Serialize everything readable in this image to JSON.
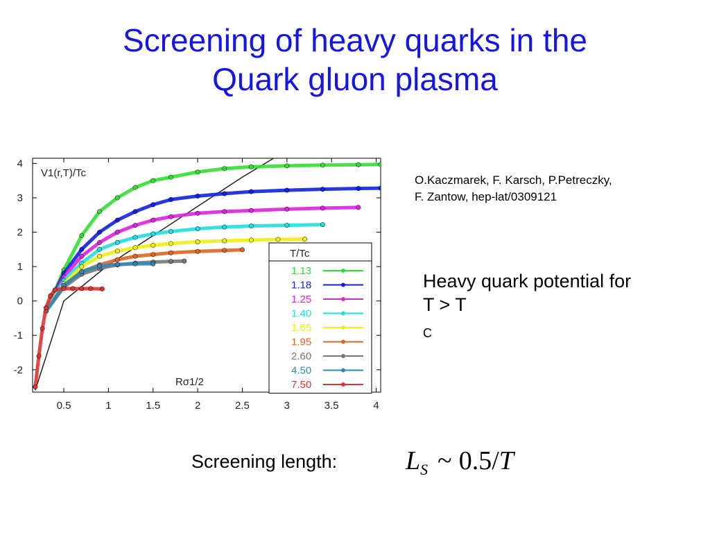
{
  "slide": {
    "title_line1": "Screening of heavy quarks in the",
    "title_line2": "Quark gluon plasma",
    "reference_line1": "O.Kaczmarek, F. Karsch, P.Petreczky,",
    "reference_line2": "F. Zantow, hep-lat/0309121",
    "description_line1": "Heavy quark potential for",
    "description_prefix": "T > T",
    "description_sub": "C",
    "screening_label": "Screening length:",
    "formula": {
      "lhs": "L",
      "lhs_sub": "S",
      "relation": "~",
      "rhs": "0.5/",
      "rhs_var": "T"
    }
  },
  "chart_data": {
    "type": "scatter",
    "title": "",
    "ylabel": "V1(r,T)/Tc",
    "xlabel": "Rσ1/2",
    "xlim": [
      0.15,
      4.05
    ],
    "ylim": [
      -2.65,
      4.15
    ],
    "x_ticks": [
      0.5,
      1,
      1.5,
      2,
      2.5,
      3,
      3.5,
      4
    ],
    "y_ticks": [
      -2,
      -1,
      0,
      1,
      2,
      3,
      4
    ],
    "x_tick_labels": [
      "0.5",
      "1",
      "1.5",
      "2",
      "2.5",
      "3",
      "3.5",
      "4"
    ],
    "y_tick_labels": [
      "-2",
      "-1",
      "0",
      "1",
      "2",
      "3",
      "4"
    ],
    "legend_title": "T/Tc",
    "legend_position": "bottom-right",
    "series": [
      {
        "name": "1.13",
        "color": "#33dd33",
        "x": [
          0.3,
          0.5,
          0.7,
          0.9,
          1.1,
          1.3,
          1.5,
          1.7,
          2.0,
          2.3,
          2.6,
          3.0,
          3.4,
          3.8,
          4.05
        ],
        "y": [
          -0.3,
          0.9,
          1.9,
          2.6,
          3.0,
          3.3,
          3.5,
          3.6,
          3.75,
          3.85,
          3.9,
          3.93,
          3.95,
          3.96,
          3.97
        ]
      },
      {
        "name": "1.18",
        "color": "#1122dd",
        "x": [
          0.3,
          0.5,
          0.7,
          0.9,
          1.1,
          1.3,
          1.5,
          1.7,
          2.0,
          2.3,
          2.6,
          3.0,
          3.4,
          3.8,
          4.05
        ],
        "y": [
          -0.3,
          0.8,
          1.5,
          2.0,
          2.35,
          2.6,
          2.8,
          2.95,
          3.05,
          3.12,
          3.18,
          3.22,
          3.25,
          3.27,
          3.28
        ]
      },
      {
        "name": "1.25",
        "color": "#dd22dd",
        "x": [
          0.3,
          0.5,
          0.7,
          0.9,
          1.1,
          1.3,
          1.5,
          1.7,
          2.0,
          2.3,
          2.6,
          3.0,
          3.4,
          3.8
        ],
        "y": [
          -0.3,
          0.7,
          1.3,
          1.7,
          2.0,
          2.2,
          2.35,
          2.45,
          2.55,
          2.6,
          2.63,
          2.67,
          2.7,
          2.72
        ]
      },
      {
        "name": "1.40",
        "color": "#22dddd",
        "x": [
          0.3,
          0.5,
          0.7,
          0.9,
          1.1,
          1.3,
          1.5,
          1.7,
          2.0,
          2.3,
          2.6,
          3.0,
          3.4
        ],
        "y": [
          -0.3,
          0.6,
          1.1,
          1.5,
          1.7,
          1.85,
          1.95,
          2.02,
          2.1,
          2.15,
          2.18,
          2.2,
          2.22
        ]
      },
      {
        "name": "1.65",
        "color": "#eeee11",
        "x": [
          0.3,
          0.5,
          0.7,
          0.9,
          1.1,
          1.3,
          1.5,
          1.7,
          2.0,
          2.3,
          2.6,
          2.9,
          3.2
        ],
        "y": [
          -0.3,
          0.5,
          1.0,
          1.3,
          1.45,
          1.55,
          1.62,
          1.67,
          1.72,
          1.75,
          1.77,
          1.79,
          1.8
        ]
      },
      {
        "name": "1.95",
        "color": "#dd6622",
        "x": [
          0.3,
          0.5,
          0.7,
          0.9,
          1.1,
          1.3,
          1.5,
          1.7,
          2.0,
          2.3,
          2.5
        ],
        "y": [
          -0.3,
          0.45,
          0.85,
          1.05,
          1.2,
          1.3,
          1.35,
          1.4,
          1.44,
          1.47,
          1.49
        ]
      },
      {
        "name": "2.60",
        "color": "#777777",
        "x": [
          0.3,
          0.5,
          0.7,
          0.9,
          1.1,
          1.3,
          1.5,
          1.7,
          1.85
        ],
        "y": [
          -0.3,
          0.4,
          0.78,
          0.95,
          1.05,
          1.1,
          1.13,
          1.15,
          1.16
        ]
      },
      {
        "name": "4.50",
        "color": "#3388bb",
        "x": [
          0.3,
          0.5,
          0.7,
          0.9,
          1.1,
          1.3,
          1.5
        ],
        "y": [
          -0.3,
          0.45,
          0.85,
          1.02,
          1.06,
          1.08,
          1.08
        ]
      },
      {
        "name": "7.50",
        "color": "#dd3333",
        "x": [
          0.18,
          0.22,
          0.26,
          0.3,
          0.35,
          0.4,
          0.5,
          0.6,
          0.7,
          0.8,
          0.93
        ],
        "y": [
          -2.5,
          -1.6,
          -0.8,
          -0.2,
          0.15,
          0.32,
          0.36,
          0.36,
          0.36,
          0.36,
          0.35
        ]
      }
    ],
    "reference_line": {
      "x": [
        0.18,
        0.5,
        1.0,
        1.5,
        2.0,
        2.5,
        2.85
      ],
      "y": [
        -2.6,
        0.0,
        1.05,
        1.9,
        2.75,
        3.6,
        4.15
      ]
    }
  }
}
